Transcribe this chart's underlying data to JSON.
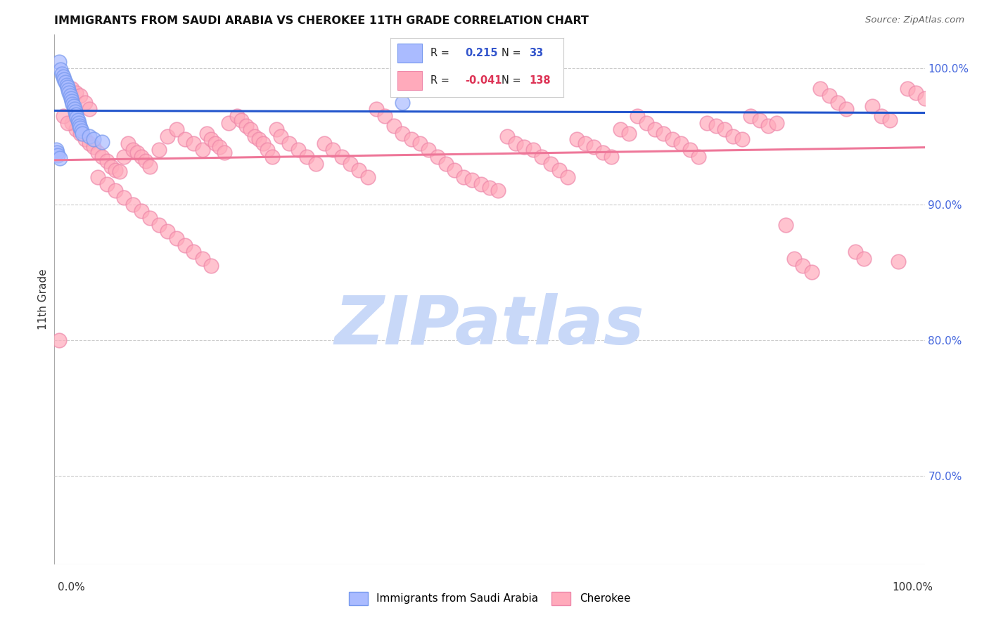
{
  "title": "IMMIGRANTS FROM SAUDI ARABIA VS CHEROKEE 11TH GRADE CORRELATION CHART",
  "source": "Source: ZipAtlas.com",
  "ylabel": "11th Grade",
  "xlim": [
    0.0,
    1.0
  ],
  "ylim": [
    0.635,
    1.025
  ],
  "ytick_values": [
    0.7,
    0.8,
    0.9,
    1.0
  ],
  "ytick_labels": [
    "70.0%",
    "80.0%",
    "90.0%",
    "100.0%"
  ],
  "blue_r": "0.215",
  "blue_n": "33",
  "pink_r": "-0.041",
  "pink_n": "138",
  "blue_dot_color": "#aabbff",
  "blue_dot_edge": "#7799ee",
  "pink_dot_color": "#ffaabb",
  "pink_dot_edge": "#ee88aa",
  "blue_line_color": "#2255cc",
  "pink_line_color": "#ee7799",
  "grid_color": "#cccccc",
  "bg_color": "#ffffff",
  "watermark_color": "#c8d8f8",
  "blue_x": [
    0.005,
    0.007,
    0.009,
    0.01,
    0.011,
    0.013,
    0.014,
    0.015,
    0.016,
    0.017,
    0.018,
    0.019,
    0.02,
    0.021,
    0.022,
    0.023,
    0.024,
    0.025,
    0.026,
    0.027,
    0.028,
    0.029,
    0.03,
    0.031,
    0.032,
    0.04,
    0.045,
    0.055,
    0.002,
    0.003,
    0.004,
    0.006,
    0.4
  ],
  "blue_y": [
    1.005,
    0.999,
    0.996,
    0.994,
    0.992,
    0.99,
    0.988,
    0.986,
    0.984,
    0.982,
    0.98,
    0.978,
    0.976,
    0.974,
    0.972,
    0.97,
    0.968,
    0.966,
    0.964,
    0.962,
    0.96,
    0.958,
    0.956,
    0.954,
    0.952,
    0.95,
    0.948,
    0.946,
    0.94,
    0.938,
    0.936,
    0.934,
    0.975
  ],
  "pink_x": [
    0.02,
    0.025,
    0.03,
    0.035,
    0.04,
    0.045,
    0.05,
    0.055,
    0.06,
    0.065,
    0.07,
    0.075,
    0.08,
    0.085,
    0.09,
    0.095,
    0.1,
    0.105,
    0.11,
    0.12,
    0.13,
    0.14,
    0.15,
    0.16,
    0.17,
    0.175,
    0.18,
    0.185,
    0.19,
    0.195,
    0.2,
    0.21,
    0.215,
    0.22,
    0.225,
    0.23,
    0.235,
    0.24,
    0.245,
    0.25,
    0.255,
    0.26,
    0.27,
    0.28,
    0.29,
    0.3,
    0.31,
    0.32,
    0.33,
    0.34,
    0.35,
    0.36,
    0.37,
    0.38,
    0.39,
    0.4,
    0.41,
    0.42,
    0.43,
    0.44,
    0.45,
    0.46,
    0.47,
    0.48,
    0.49,
    0.5,
    0.51,
    0.52,
    0.53,
    0.54,
    0.55,
    0.56,
    0.57,
    0.58,
    0.59,
    0.6,
    0.61,
    0.62,
    0.63,
    0.64,
    0.65,
    0.66,
    0.67,
    0.68,
    0.69,
    0.7,
    0.71,
    0.72,
    0.73,
    0.74,
    0.75,
    0.76,
    0.77,
    0.78,
    0.79,
    0.8,
    0.81,
    0.82,
    0.83,
    0.84,
    0.85,
    0.86,
    0.87,
    0.88,
    0.89,
    0.9,
    0.91,
    0.92,
    0.93,
    0.94,
    0.95,
    0.96,
    0.97,
    0.98,
    0.99,
    1.0,
    0.005,
    0.01,
    0.015,
    0.02,
    0.025,
    0.03,
    0.035,
    0.04,
    0.05,
    0.06,
    0.07,
    0.08,
    0.09,
    0.1,
    0.11,
    0.12,
    0.13,
    0.14,
    0.15,
    0.16,
    0.17,
    0.18
  ],
  "pink_y": [
    0.96,
    0.955,
    0.952,
    0.948,
    0.945,
    0.942,
    0.938,
    0.935,
    0.932,
    0.928,
    0.925,
    0.924,
    0.935,
    0.945,
    0.94,
    0.938,
    0.935,
    0.932,
    0.928,
    0.94,
    0.95,
    0.955,
    0.948,
    0.945,
    0.94,
    0.952,
    0.948,
    0.945,
    0.942,
    0.938,
    0.96,
    0.965,
    0.962,
    0.958,
    0.955,
    0.95,
    0.948,
    0.945,
    0.94,
    0.935,
    0.955,
    0.95,
    0.945,
    0.94,
    0.935,
    0.93,
    0.945,
    0.94,
    0.935,
    0.93,
    0.925,
    0.92,
    0.97,
    0.965,
    0.958,
    0.952,
    0.948,
    0.945,
    0.94,
    0.935,
    0.93,
    0.925,
    0.92,
    0.918,
    0.915,
    0.912,
    0.91,
    0.95,
    0.945,
    0.942,
    0.94,
    0.935,
    0.93,
    0.925,
    0.92,
    0.948,
    0.945,
    0.942,
    0.938,
    0.935,
    0.955,
    0.952,
    0.965,
    0.96,
    0.955,
    0.952,
    0.948,
    0.945,
    0.94,
    0.935,
    0.96,
    0.958,
    0.955,
    0.95,
    0.948,
    0.965,
    0.962,
    0.958,
    0.96,
    0.885,
    0.86,
    0.855,
    0.85,
    0.985,
    0.98,
    0.975,
    0.97,
    0.865,
    0.86,
    0.972,
    0.965,
    0.962,
    0.858,
    0.985,
    0.982,
    0.978,
    0.8,
    0.965,
    0.96,
    0.985,
    0.982,
    0.98,
    0.975,
    0.97,
    0.92,
    0.915,
    0.91,
    0.905,
    0.9,
    0.895,
    0.89,
    0.885,
    0.88,
    0.875,
    0.87,
    0.865,
    0.86,
    0.855
  ]
}
